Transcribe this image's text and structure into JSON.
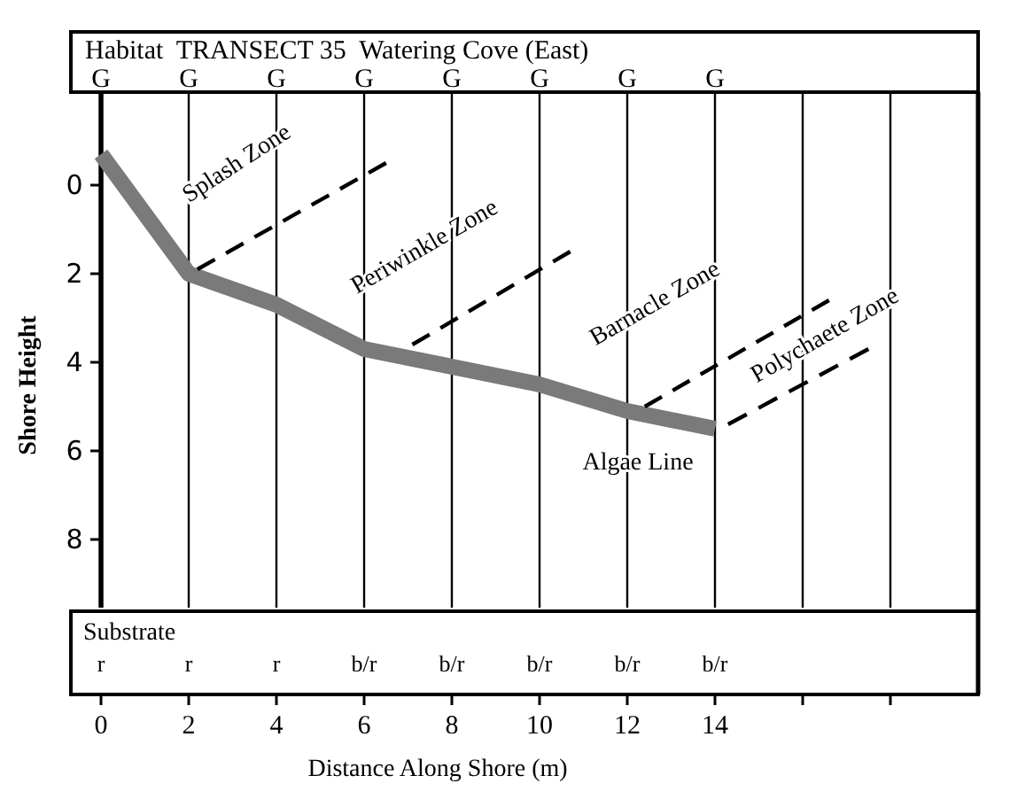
{
  "chart_data": {
    "type": "line",
    "title": "Habitat  TRANSECT 35  Watering Cove (East)",
    "xlabel": "Distance Along Shore (m)",
    "ylabel": "Shore Height",
    "xlim": [
      0,
      20
    ],
    "xticks": [
      0,
      2,
      4,
      6,
      8,
      10,
      12,
      14,
      {
        "value": 16,
        "label": null
      },
      {
        "value": 18,
        "label": null
      }
    ],
    "ylim": [
      11.5,
      -2.1
    ],
    "yticks": [
      0,
      2,
      4,
      6,
      8
    ],
    "grid": "x",
    "series": [
      {
        "color": "#7a7a7a",
        "x": [
          0,
          2,
          4,
          6,
          8,
          10,
          12,
          14
        ],
        "values": [
          -0.7,
          2.0,
          2.7,
          3.7,
          4.1,
          4.5,
          5.1,
          5.5
        ]
      },
      {
        "color": "#000000",
        "line_style": "dashed",
        "x": [
          2.2,
          6.5
        ],
        "values": [
          1.9,
          -0.5
        ]
      },
      {
        "color": "#000000",
        "line_style": "dashed",
        "x": [
          7.1,
          10.7
        ],
        "values": [
          3.6,
          1.5
        ]
      },
      {
        "color": "#000000",
        "line_style": "dashed",
        "x": [
          12.4,
          16.6
        ],
        "values": [
          5.0,
          2.6
        ]
      },
      {
        "color": "#000000",
        "line_style": "dashed",
        "x": [
          14.3,
          17.5
        ],
        "values": [
          5.4,
          3.7
        ]
      }
    ],
    "annotations": [
      "Splash Zone",
      "Periwinkle Zone",
      "Barnacle Zone",
      "Polychaete Zone",
      "Algae Line",
      "G",
      "G",
      "G",
      "G",
      "G",
      "G",
      "G",
      "G",
      "Substrate",
      {
        "text": "r",
        "x": 0
      },
      {
        "text": "r",
        "x": 2
      },
      {
        "text": "r",
        "x": 4
      },
      {
        "text": "b/r",
        "x": 6
      },
      {
        "text": "b/r",
        "x": 8
      },
      {
        "text": "b/r",
        "x": 10
      },
      {
        "text": "b/r",
        "x": 12
      },
      {
        "text": "b/r",
        "x": 14
      }
    ]
  }
}
